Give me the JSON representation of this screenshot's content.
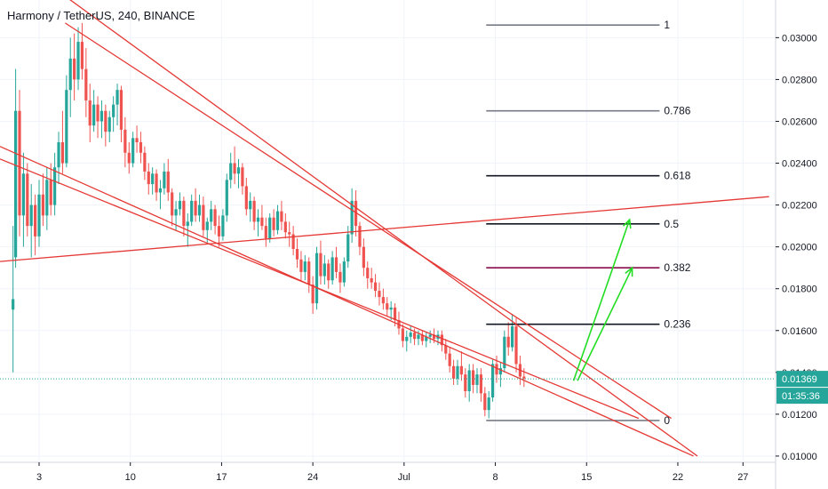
{
  "chart_data": {
    "type": "candlestick",
    "title": "Harmony / TetherUS, 240, BINANCE",
    "y_ticks": [
      "0.03000",
      "0.02800",
      "0.02600",
      "0.02400",
      "0.02200",
      "0.02000",
      "0.01800",
      "0.01600",
      "0.01400",
      "0.01200",
      "0.01000"
    ],
    "y_tick_values": [
      0.03,
      0.028,
      0.026,
      0.024,
      0.022,
      0.02,
      0.018,
      0.016,
      0.014,
      0.012,
      0.01
    ],
    "ylim": [
      0.0097,
      0.0318
    ],
    "x_ticks": [
      "3",
      "10",
      "17",
      "24",
      "Jul",
      "8",
      "15",
      "22",
      "27"
    ],
    "x_tick_days": [
      3,
      10,
      17,
      24,
      31,
      38,
      45,
      52,
      57
    ],
    "xlim": [
      0.0,
      59.5
    ],
    "last_price": "0.01369",
    "last_price_value": 0.01369,
    "countdown": "01:35:36",
    "fib_levels": [
      {
        "label": "1",
        "value": 0.0306,
        "color": "#787b86"
      },
      {
        "label": "0.786",
        "value": 0.0265,
        "color": "#787b86"
      },
      {
        "label": "0.618",
        "value": 0.0234,
        "color": "#131722"
      },
      {
        "label": "0.5",
        "value": 0.0211,
        "color": "#131722"
      },
      {
        "label": "0.382",
        "value": 0.019,
        "color": "#880e4f"
      },
      {
        "label": "0.236",
        "value": 0.0163,
        "color": "#131722"
      },
      {
        "label": "0",
        "value": 0.0117,
        "color": "#787b86"
      }
    ],
    "fib_x_range": [
      37.3,
      50.6
    ],
    "trendlines": [
      {
        "x1": 4.3,
        "y1": 0.0323,
        "x2": 53.5,
        "y2": 0.01
      },
      {
        "x1": 0.0,
        "y1": 0.0248,
        "x2": 53.2,
        "y2": 0.01
      },
      {
        "x1": 0.0,
        "y1": 0.0242,
        "x2": 49.0,
        "y2": 0.0118
      },
      {
        "x1": 0.0,
        "y1": 0.0193,
        "x2": 59.0,
        "y2": 0.0224
      },
      {
        "x1": 5.0,
        "y1": 0.0307,
        "x2": 51.5,
        "y2": 0.0118
      }
    ],
    "arrows": [
      {
        "x1": 44.3,
        "y1": 0.0136,
        "x2": 48.5,
        "y2": 0.019
      },
      {
        "x1": 44.0,
        "y1": 0.0136,
        "x2": 48.3,
        "y2": 0.0213
      }
    ],
    "colors": {
      "up": "#26a69a",
      "down": "#ef5350",
      "trend": "#e53935",
      "arrow": "#22dd22",
      "last_price": "#26a69a",
      "grid": "#f0f3fa"
    },
    "candles": [
      [
        1.0,
        0.017,
        0.021,
        0.014,
        0.0175
      ],
      [
        1.2,
        0.0195,
        0.0285,
        0.019,
        0.0265
      ],
      [
        1.5,
        0.0265,
        0.0275,
        0.0205,
        0.0215
      ],
      [
        1.8,
        0.0215,
        0.0245,
        0.02,
        0.0235
      ],
      [
        2.1,
        0.0235,
        0.024,
        0.0205,
        0.021
      ],
      [
        2.4,
        0.021,
        0.023,
        0.0195,
        0.022
      ],
      [
        2.7,
        0.022,
        0.0225,
        0.0196,
        0.0205
      ],
      [
        3.0,
        0.0205,
        0.0232,
        0.02,
        0.0225
      ],
      [
        3.3,
        0.0225,
        0.0235,
        0.021,
        0.0215
      ],
      [
        3.6,
        0.0215,
        0.0238,
        0.0208,
        0.0232
      ],
      [
        3.9,
        0.0232,
        0.024,
        0.0215,
        0.022
      ],
      [
        4.2,
        0.022,
        0.0245,
        0.0215,
        0.0238
      ],
      [
        4.5,
        0.0238,
        0.0255,
        0.023,
        0.025
      ],
      [
        4.8,
        0.025,
        0.0265,
        0.0235,
        0.024
      ],
      [
        5.1,
        0.024,
        0.0282,
        0.0238,
        0.0275
      ],
      [
        5.4,
        0.0275,
        0.03,
        0.0262,
        0.029
      ],
      [
        5.7,
        0.029,
        0.0302,
        0.027,
        0.028
      ],
      [
        6.0,
        0.028,
        0.0305,
        0.0275,
        0.0298
      ],
      [
        6.3,
        0.0298,
        0.0307,
        0.028,
        0.0285
      ],
      [
        6.6,
        0.0285,
        0.0295,
        0.0262,
        0.027
      ],
      [
        6.9,
        0.027,
        0.0278,
        0.025,
        0.0258
      ],
      [
        7.2,
        0.0258,
        0.0275,
        0.0255,
        0.0268
      ],
      [
        7.5,
        0.0268,
        0.0272,
        0.0252,
        0.026
      ],
      [
        7.8,
        0.026,
        0.027,
        0.0252,
        0.0265
      ],
      [
        8.1,
        0.0265,
        0.0268,
        0.0248,
        0.0255
      ],
      [
        8.4,
        0.0255,
        0.0265,
        0.025,
        0.0262
      ],
      [
        8.7,
        0.0262,
        0.0272,
        0.0255,
        0.0268
      ],
      [
        9.0,
        0.0268,
        0.0278,
        0.0258,
        0.0275
      ],
      [
        9.3,
        0.0275,
        0.0277,
        0.025,
        0.0256
      ],
      [
        9.6,
        0.0256,
        0.0262,
        0.0238,
        0.0245
      ],
      [
        9.9,
        0.0245,
        0.025,
        0.0235,
        0.024
      ],
      [
        10.2,
        0.024,
        0.0255,
        0.0238,
        0.0252
      ],
      [
        10.5,
        0.0252,
        0.0258,
        0.0245,
        0.025
      ],
      [
        10.8,
        0.025,
        0.0255,
        0.024,
        0.0245
      ],
      [
        11.1,
        0.0245,
        0.0248,
        0.0232,
        0.0236
      ],
      [
        11.4,
        0.0236,
        0.024,
        0.0225,
        0.023
      ],
      [
        11.7,
        0.023,
        0.0238,
        0.0225,
        0.0235
      ],
      [
        12.0,
        0.0235,
        0.0237,
        0.0222,
        0.0226
      ],
      [
        12.3,
        0.0226,
        0.0232,
        0.0218,
        0.0228
      ],
      [
        12.6,
        0.0228,
        0.024,
        0.0225,
        0.0236
      ],
      [
        12.9,
        0.0236,
        0.0242,
        0.0222,
        0.0226
      ],
      [
        13.2,
        0.0226,
        0.0228,
        0.021,
        0.0215
      ],
      [
        13.5,
        0.0215,
        0.0222,
        0.0208,
        0.0218
      ],
      [
        13.8,
        0.0218,
        0.0226,
        0.0215,
        0.0222
      ],
      [
        14.1,
        0.0222,
        0.0224,
        0.0205,
        0.021
      ],
      [
        14.4,
        0.021,
        0.0216,
        0.02,
        0.0212
      ],
      [
        14.7,
        0.0212,
        0.0225,
        0.021,
        0.0222
      ],
      [
        15.0,
        0.0222,
        0.0228,
        0.0212,
        0.0215
      ],
      [
        15.3,
        0.0215,
        0.0225,
        0.0212,
        0.022
      ],
      [
        15.6,
        0.022,
        0.0224,
        0.0205,
        0.0208
      ],
      [
        15.9,
        0.0208,
        0.0214,
        0.0202,
        0.0212
      ],
      [
        16.2,
        0.0212,
        0.0222,
        0.0208,
        0.0218
      ],
      [
        16.5,
        0.0218,
        0.022,
        0.0206,
        0.021
      ],
      [
        16.8,
        0.021,
        0.0215,
        0.02,
        0.0205
      ],
      [
        17.1,
        0.0205,
        0.0218,
        0.0203,
        0.0215
      ],
      [
        17.4,
        0.0215,
        0.0235,
        0.0212,
        0.0232
      ],
      [
        17.7,
        0.0232,
        0.0245,
        0.0228,
        0.024
      ],
      [
        18.0,
        0.024,
        0.0248,
        0.023,
        0.0235
      ],
      [
        18.3,
        0.0235,
        0.0242,
        0.0228,
        0.0238
      ],
      [
        18.6,
        0.0238,
        0.024,
        0.0225,
        0.0229
      ],
      [
        18.9,
        0.0229,
        0.0233,
        0.0215,
        0.0218
      ],
      [
        19.2,
        0.0218,
        0.0226,
        0.0212,
        0.0222
      ],
      [
        19.5,
        0.0222,
        0.0224,
        0.0208,
        0.0212
      ],
      [
        19.8,
        0.0212,
        0.0218,
        0.0205,
        0.0214
      ],
      [
        20.1,
        0.0214,
        0.022,
        0.0208,
        0.021
      ],
      [
        20.4,
        0.021,
        0.0214,
        0.02,
        0.0204
      ],
      [
        20.7,
        0.0204,
        0.0216,
        0.0202,
        0.0214
      ],
      [
        21.0,
        0.0214,
        0.0218,
        0.0205,
        0.0208
      ],
      [
        21.3,
        0.0208,
        0.022,
        0.0206,
        0.0217
      ],
      [
        21.6,
        0.0217,
        0.0222,
        0.0208,
        0.0212
      ],
      [
        21.9,
        0.0212,
        0.0216,
        0.0204,
        0.0207
      ],
      [
        22.2,
        0.0207,
        0.0212,
        0.02,
        0.0206
      ],
      [
        22.5,
        0.0206,
        0.021,
        0.0196,
        0.0199
      ],
      [
        22.8,
        0.0199,
        0.0204,
        0.019,
        0.0194
      ],
      [
        23.1,
        0.0194,
        0.0198,
        0.0184,
        0.0188
      ],
      [
        23.4,
        0.0188,
        0.0196,
        0.0184,
        0.0193
      ],
      [
        23.7,
        0.0193,
        0.0195,
        0.0178,
        0.0182
      ],
      [
        24.0,
        0.0182,
        0.0186,
        0.0168,
        0.0173
      ],
      [
        24.3,
        0.0173,
        0.02,
        0.017,
        0.0197
      ],
      [
        24.6,
        0.0197,
        0.0203,
        0.0182,
        0.0186
      ],
      [
        24.9,
        0.0186,
        0.0196,
        0.0182,
        0.0192
      ],
      [
        25.2,
        0.0192,
        0.0194,
        0.018,
        0.0184
      ],
      [
        25.5,
        0.0184,
        0.0198,
        0.0182,
        0.0195
      ],
      [
        25.8,
        0.0195,
        0.02,
        0.0185,
        0.0188
      ],
      [
        26.1,
        0.0188,
        0.0192,
        0.0178,
        0.0183
      ],
      [
        26.4,
        0.0183,
        0.0195,
        0.0181,
        0.0193
      ],
      [
        26.7,
        0.0193,
        0.021,
        0.019,
        0.0206
      ],
      [
        27.0,
        0.0206,
        0.0228,
        0.0202,
        0.0222
      ],
      [
        27.3,
        0.0222,
        0.0227,
        0.0205,
        0.021
      ],
      [
        27.6,
        0.021,
        0.0212,
        0.0196,
        0.02
      ],
      [
        27.9,
        0.02,
        0.0204,
        0.0186,
        0.019
      ],
      [
        28.2,
        0.019,
        0.0193,
        0.018,
        0.0185
      ],
      [
        28.5,
        0.0185,
        0.019,
        0.018,
        0.0183
      ],
      [
        28.8,
        0.0183,
        0.0187,
        0.0176,
        0.0179
      ],
      [
        29.1,
        0.0179,
        0.0183,
        0.0172,
        0.0176
      ],
      [
        29.4,
        0.0176,
        0.018,
        0.017,
        0.0173
      ],
      [
        29.7,
        0.0173,
        0.0176,
        0.0167,
        0.017
      ],
      [
        30.0,
        0.017,
        0.0174,
        0.0165,
        0.0171
      ],
      [
        30.3,
        0.0171,
        0.0173,
        0.0162,
        0.0165
      ],
      [
        30.6,
        0.0165,
        0.0169,
        0.0158,
        0.0161
      ],
      [
        30.9,
        0.0161,
        0.0163,
        0.0152,
        0.0155
      ],
      [
        31.2,
        0.0155,
        0.016,
        0.015,
        0.0157
      ],
      [
        31.5,
        0.0157,
        0.0162,
        0.0154,
        0.0159
      ],
      [
        31.8,
        0.0159,
        0.0161,
        0.0153,
        0.0156
      ],
      [
        32.1,
        0.0156,
        0.016,
        0.0153,
        0.0158
      ],
      [
        32.4,
        0.0158,
        0.016,
        0.0153,
        0.0155
      ],
      [
        32.7,
        0.0155,
        0.0159,
        0.0152,
        0.0157
      ],
      [
        33.0,
        0.0157,
        0.016,
        0.0154,
        0.0158
      ],
      [
        33.3,
        0.0158,
        0.0161,
        0.0154,
        0.0156
      ],
      [
        33.6,
        0.0156,
        0.016,
        0.0153,
        0.0158
      ],
      [
        33.9,
        0.0158,
        0.016,
        0.015,
        0.0153
      ],
      [
        34.2,
        0.0153,
        0.0156,
        0.0146,
        0.0149
      ],
      [
        34.5,
        0.0149,
        0.0152,
        0.014,
        0.0143
      ],
      [
        34.8,
        0.0143,
        0.0146,
        0.0134,
        0.0137
      ],
      [
        35.1,
        0.0137,
        0.0146,
        0.0134,
        0.0143
      ],
      [
        35.4,
        0.0143,
        0.015,
        0.0136,
        0.0139
      ],
      [
        35.7,
        0.0139,
        0.0142,
        0.0128,
        0.0131
      ],
      [
        36.0,
        0.0131,
        0.0144,
        0.0126,
        0.0141
      ],
      [
        36.3,
        0.0141,
        0.0144,
        0.013,
        0.0134
      ],
      [
        36.6,
        0.0134,
        0.0142,
        0.013,
        0.0139
      ],
      [
        36.9,
        0.0139,
        0.0142,
        0.0126,
        0.013
      ],
      [
        37.2,
        0.013,
        0.0133,
        0.0119,
        0.0122
      ],
      [
        37.5,
        0.0122,
        0.0131,
        0.0118,
        0.0128
      ],
      [
        37.8,
        0.0128,
        0.0146,
        0.0126,
        0.0144
      ],
      [
        38.1,
        0.0144,
        0.0148,
        0.0135,
        0.0139
      ],
      [
        38.4,
        0.0139,
        0.0145,
        0.0133,
        0.0142
      ],
      [
        38.7,
        0.0142,
        0.016,
        0.014,
        0.0157
      ],
      [
        39.0,
        0.0157,
        0.0164,
        0.0148,
        0.0152
      ],
      [
        39.3,
        0.0152,
        0.0168,
        0.015,
        0.0162
      ],
      [
        39.6,
        0.0162,
        0.0166,
        0.014,
        0.0144
      ],
      [
        39.9,
        0.0144,
        0.0148,
        0.0134,
        0.0138
      ],
      [
        40.2,
        0.0138,
        0.0142,
        0.0133,
        0.0137
      ]
    ]
  }
}
